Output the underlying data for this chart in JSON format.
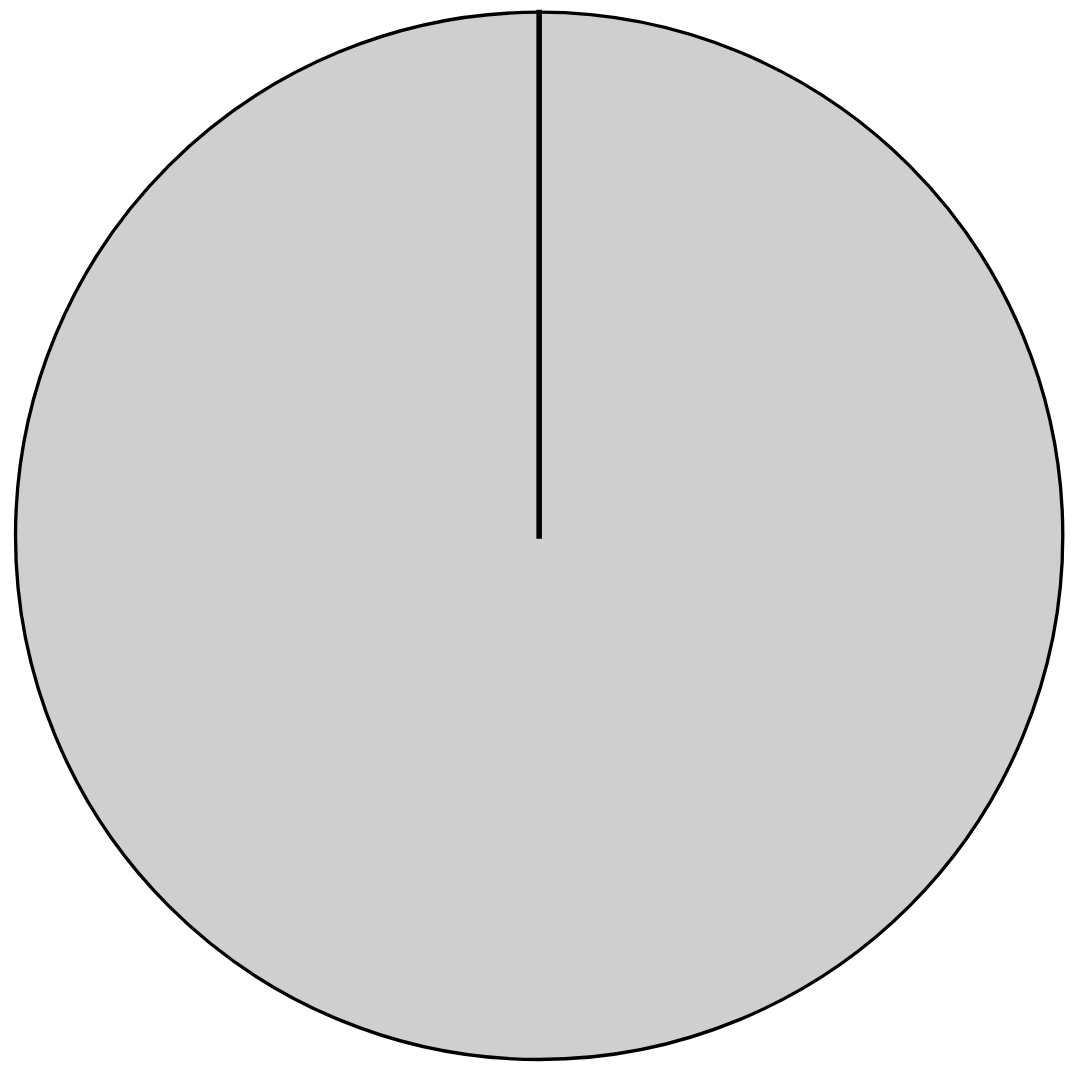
{
  "chart_data": {
    "type": "pie",
    "categories": [
      null
    ],
    "values": [
      100
    ],
    "colors": [
      "#cfcfcf"
    ]
  }
}
